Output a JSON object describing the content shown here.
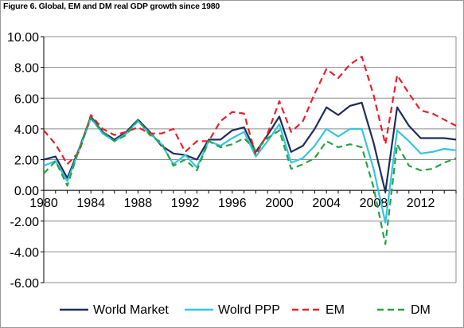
{
  "title": "Figure 6. Global, EM and DM real GDP growth since 1980",
  "chart_data": {
    "type": "line",
    "title": "Figure 6. Global, EM and DM real GDP growth since 1980",
    "xlabel": "",
    "ylabel": "",
    "x": [
      1980,
      1981,
      1982,
      1983,
      1984,
      1985,
      1986,
      1987,
      1988,
      1989,
      1990,
      1991,
      1992,
      1993,
      1994,
      1995,
      1996,
      1997,
      1998,
      1999,
      2000,
      2001,
      2002,
      2003,
      2004,
      2005,
      2006,
      2007,
      2008,
      2009,
      2010,
      2011,
      2012,
      2013,
      2014,
      2015
    ],
    "x_ticks": [
      "1980",
      "1984",
      "1988",
      "1992",
      "1996",
      "2000",
      "2004",
      "2008",
      "2012"
    ],
    "y_ticks": [
      "10.00",
      "8.00",
      "6.00",
      "4.00",
      "2.00",
      "0.00",
      "-2.00",
      "-4.00",
      "-6.00"
    ],
    "ylim": [
      -6,
      10
    ],
    "xlim": [
      1980,
      2015
    ],
    "grid": "horizontal",
    "legend_position": "bottom",
    "series": [
      {
        "name": "World Market",
        "color": "#1f2d5c",
        "dash": "solid",
        "values": [
          2.0,
          2.2,
          0.8,
          2.7,
          4.8,
          3.8,
          3.3,
          3.8,
          4.6,
          3.8,
          2.9,
          2.4,
          2.3,
          2.0,
          3.3,
          3.3,
          3.9,
          4.1,
          2.5,
          3.6,
          4.8,
          2.5,
          2.9,
          4.0,
          5.4,
          4.9,
          5.5,
          5.7,
          3.1,
          -0.1,
          5.4,
          4.2,
          3.4,
          3.4,
          3.4,
          3.3
        ]
      },
      {
        "name": "Wolrd PPP",
        "color": "#33c6e0",
        "dash": "solid",
        "values": [
          1.6,
          1.9,
          0.6,
          2.6,
          4.7,
          3.7,
          3.2,
          3.7,
          4.5,
          3.7,
          3.0,
          1.7,
          2.3,
          1.5,
          3.2,
          2.9,
          3.4,
          3.8,
          2.2,
          3.2,
          4.3,
          1.8,
          2.1,
          2.9,
          4.0,
          3.5,
          4.0,
          4.0,
          1.4,
          -2.1,
          3.9,
          3.2,
          2.4,
          2.5,
          2.7,
          2.6
        ]
      },
      {
        "name": "EM",
        "color": "#e8202a",
        "dash": "dashed",
        "values": [
          3.9,
          3.0,
          1.7,
          2.5,
          4.9,
          4.0,
          3.6,
          3.8,
          4.1,
          3.7,
          3.7,
          4.0,
          2.5,
          3.2,
          3.2,
          4.5,
          5.1,
          5.0,
          2.3,
          3.7,
          5.8,
          3.8,
          4.5,
          6.3,
          7.9,
          7.3,
          8.2,
          8.7,
          6.2,
          3.0,
          7.5,
          6.3,
          5.2,
          5.0,
          4.6,
          4.2
        ]
      },
      {
        "name": "DM",
        "color": "#27a344",
        "dash": "dashed",
        "values": [
          1.1,
          1.9,
          0.3,
          2.7,
          4.7,
          3.8,
          3.2,
          3.6,
          4.6,
          3.6,
          3.1,
          1.6,
          2.0,
          1.3,
          3.2,
          2.8,
          3.0,
          3.4,
          2.6,
          3.4,
          3.9,
          1.4,
          1.7,
          2.1,
          3.2,
          2.8,
          3.0,
          2.8,
          0.2,
          -3.5,
          3.0,
          1.6,
          1.3,
          1.4,
          1.8,
          2.1
        ]
      }
    ]
  }
}
